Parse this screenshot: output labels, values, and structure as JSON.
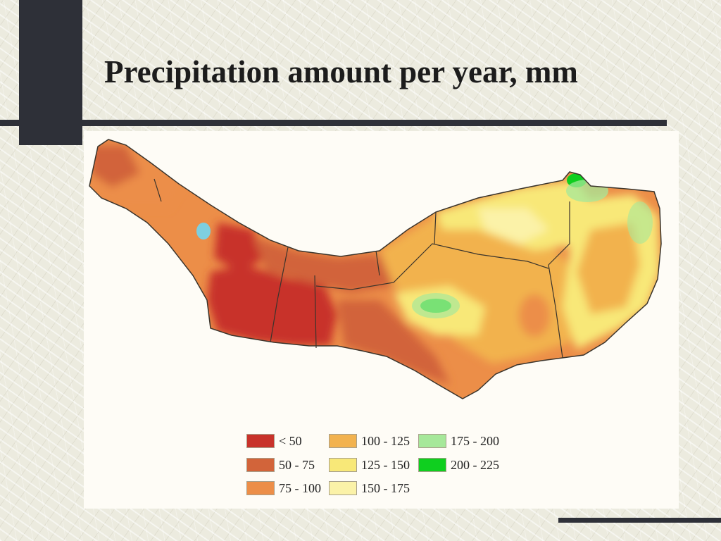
{
  "slide": {
    "title": "Precipitation amount per year, mm"
  },
  "colors": {
    "frame_dark": "#2e3038",
    "lt50": "#c8322a",
    "c50_75": "#d2643a",
    "c75_100": "#ec8e48",
    "c100_125": "#f2b24e",
    "c125_150": "#f8e878",
    "c150_175": "#fbf2a8",
    "c175_200": "#a6e89a",
    "c200_225": "#0fcf1f"
  },
  "map": {
    "icons": [
      "map-region",
      "legend-swatch"
    ]
  },
  "legend": {
    "items": [
      {
        "label": "< 50",
        "color": "#c8322a"
      },
      {
        "label": "50 - 75",
        "color": "#d2643a"
      },
      {
        "label": "75 - 100",
        "color": "#ec8e48"
      },
      {
        "label": "100 - 125",
        "color": "#f2b24e"
      },
      {
        "label": "125 - 150",
        "color": "#f8e878"
      },
      {
        "label": "150 - 175",
        "color": "#fbf2a8"
      },
      {
        "label": "175 - 200",
        "color": "#a6e89a"
      },
      {
        "label": "200 - 225",
        "color": "#0fcf1f"
      }
    ]
  }
}
